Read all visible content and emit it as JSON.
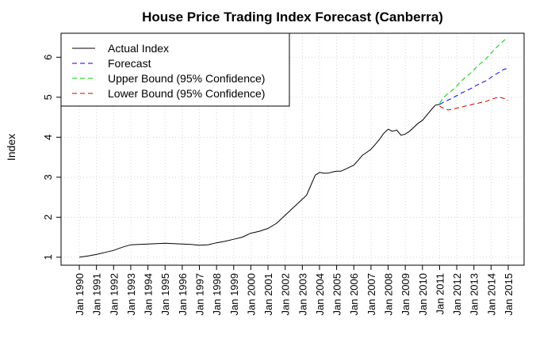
{
  "chart_data": {
    "type": "line",
    "title": "House Price Trading Index Forecast (Canberra)",
    "xlabel": "",
    "ylabel": "Index",
    "xlim": [
      1990.0,
      2015.0
    ],
    "ylim": [
      0.8,
      6.6
    ],
    "x_ticks": [
      1990,
      1991,
      1992,
      1993,
      1994,
      1995,
      1996,
      1997,
      1998,
      1999,
      2000,
      2001,
      2002,
      2003,
      2004,
      2005,
      2006,
      2007,
      2008,
      2009,
      2010,
      2011,
      2012,
      2013,
      2014,
      2015
    ],
    "x_tick_labels": [
      "Jan 1990",
      "Jan 1991",
      "Jan 1992",
      "Jan 1993",
      "Jan 1994",
      "Jan 1995",
      "Jan 1996",
      "Jan 1997",
      "Jan 1998",
      "Jan 1999",
      "Jan 2000",
      "Jan 2001",
      "Jan 2002",
      "Jan 2003",
      "Jan 2004",
      "Jan 2005",
      "Jan 2006",
      "Jan 2007",
      "Jan 2008",
      "Jan 2009",
      "Jan 2010",
      "Jan 2011",
      "Jan 2012",
      "Jan 2013",
      "Jan 2014",
      "Jan 2015"
    ],
    "y_ticks": [
      1,
      2,
      3,
      4,
      5,
      6
    ],
    "y_tick_labels": [
      "1",
      "2",
      "3",
      "4",
      "5",
      "6"
    ],
    "grid": true,
    "legend_position": "top-left",
    "series": [
      {
        "name": "Actual Index",
        "color": "#000000",
        "dash": "solid",
        "x": [
          1990.0,
          1990.5,
          1991.0,
          1991.5,
          1992.0,
          1992.5,
          1993.0,
          1993.5,
          1994.0,
          1994.5,
          1995.0,
          1995.5,
          1996.0,
          1996.5,
          1997.0,
          1997.5,
          1998.0,
          1998.5,
          1999.0,
          1999.5,
          2000.0,
          2000.5,
          2001.0,
          2001.5,
          2002.0,
          2002.5,
          2003.0,
          2003.25,
          2003.5,
          2003.75,
          2004.0,
          2004.25,
          2004.5,
          2004.75,
          2005.0,
          2005.25,
          2005.5,
          2005.75,
          2006.0,
          2006.25,
          2006.5,
          2006.75,
          2007.0,
          2007.25,
          2007.5,
          2007.75,
          2008.0,
          2008.25,
          2008.5,
          2008.75,
          2009.0,
          2009.25,
          2009.5,
          2009.75,
          2010.0,
          2010.25,
          2010.5,
          2010.75,
          2011.0
        ],
        "y": [
          1.0,
          1.03,
          1.07,
          1.12,
          1.17,
          1.25,
          1.31,
          1.32,
          1.33,
          1.34,
          1.35,
          1.34,
          1.33,
          1.32,
          1.3,
          1.31,
          1.36,
          1.4,
          1.45,
          1.5,
          1.6,
          1.65,
          1.72,
          1.85,
          2.05,
          2.25,
          2.45,
          2.55,
          2.8,
          3.05,
          3.12,
          3.1,
          3.1,
          3.13,
          3.15,
          3.15,
          3.2,
          3.25,
          3.3,
          3.42,
          3.55,
          3.62,
          3.7,
          3.82,
          3.95,
          4.1,
          4.2,
          4.15,
          4.18,
          4.05,
          4.08,
          4.15,
          4.25,
          4.35,
          4.42,
          4.55,
          4.68,
          4.8,
          4.82
        ]
      },
      {
        "name": "Forecast",
        "color": "#0000ff",
        "dash": "6,4",
        "x": [
          2011.0,
          2011.25,
          2011.5,
          2011.75,
          2012.0,
          2012.25,
          2012.5,
          2012.75,
          2013.0,
          2013.25,
          2013.5,
          2013.75,
          2014.0,
          2014.25,
          2014.5,
          2014.75,
          2015.0
        ],
        "y": [
          4.82,
          4.88,
          4.93,
          4.98,
          5.04,
          5.1,
          5.15,
          5.2,
          5.26,
          5.32,
          5.37,
          5.42,
          5.5,
          5.57,
          5.63,
          5.7,
          5.72
        ]
      },
      {
        "name": "Upper Bound (95% Confidence)",
        "color": "#00cc00",
        "dash": "6,4",
        "x": [
          2011.0,
          2011.25,
          2011.5,
          2011.75,
          2012.0,
          2012.25,
          2012.5,
          2012.75,
          2013.0,
          2013.25,
          2013.5,
          2013.75,
          2014.0,
          2014.25,
          2014.5,
          2014.75,
          2015.0
        ],
        "y": [
          4.85,
          5.0,
          5.1,
          5.18,
          5.28,
          5.4,
          5.5,
          5.58,
          5.68,
          5.8,
          5.88,
          5.98,
          6.1,
          6.22,
          6.32,
          6.42,
          6.47
        ]
      },
      {
        "name": "Lower Bound (95% Confidence)",
        "color": "#cc0000",
        "dash": "6,4",
        "x": [
          2011.0,
          2011.25,
          2011.5,
          2011.75,
          2012.0,
          2012.25,
          2012.5,
          2012.75,
          2013.0,
          2013.25,
          2013.5,
          2013.75,
          2014.0,
          2014.25,
          2014.5,
          2014.75,
          2015.0
        ],
        "y": [
          4.78,
          4.72,
          4.68,
          4.7,
          4.73,
          4.75,
          4.78,
          4.8,
          4.83,
          4.85,
          4.88,
          4.9,
          4.95,
          4.98,
          5.0,
          4.97,
          4.92
        ]
      }
    ]
  }
}
